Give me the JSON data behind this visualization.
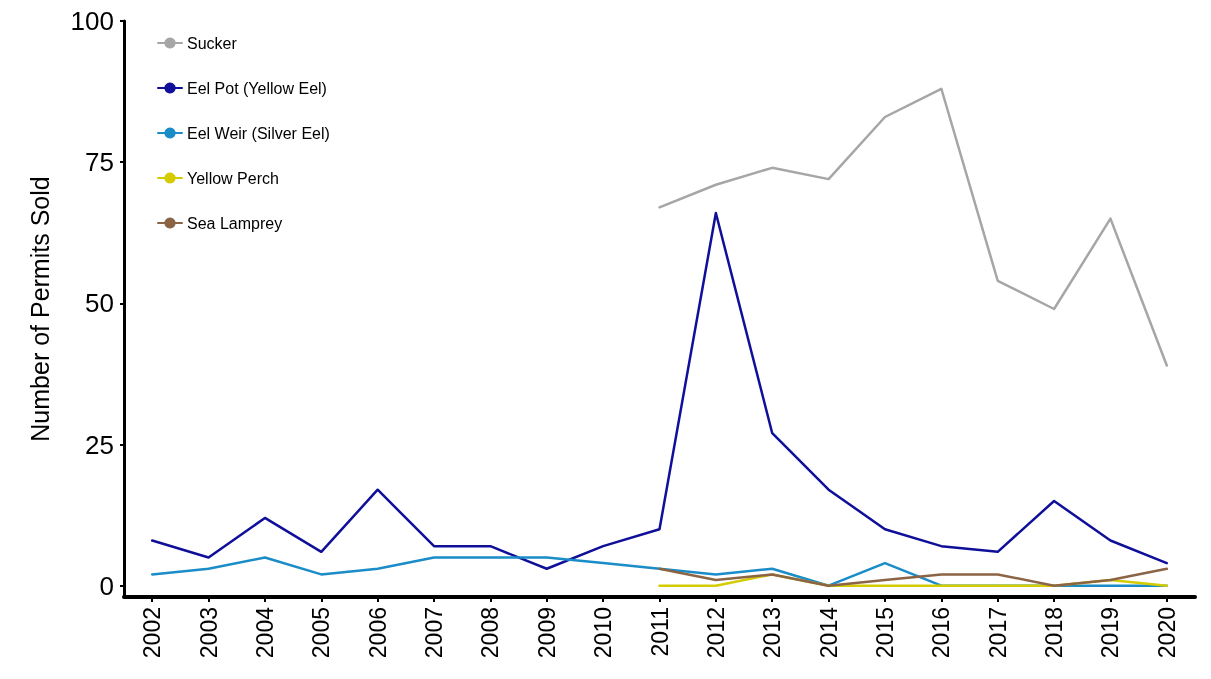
{
  "chart_data": {
    "type": "line",
    "ylabel": "Number of Permits Sold",
    "categories": [
      "2002",
      "2003",
      "2004",
      "2005",
      "2006",
      "2007",
      "2008",
      "2009",
      "2010",
      "2011",
      "2012",
      "2013",
      "2014",
      "2015",
      "2016",
      "2017",
      "2018",
      "2019",
      "2020"
    ],
    "series": [
      {
        "name": "Sucker",
        "color": "#a6a6a6",
        "values": [
          null,
          null,
          null,
          null,
          null,
          null,
          null,
          null,
          null,
          67,
          71,
          74,
          72,
          83,
          88,
          54,
          49,
          65,
          39
        ]
      },
      {
        "name": "Eel Pot (Yellow Eel)",
        "color": "#0f0f9a",
        "values": [
          8,
          5,
          12,
          6,
          17,
          7,
          7,
          3,
          7,
          10,
          66,
          27,
          17,
          10,
          7,
          6,
          15,
          8,
          4
        ]
      },
      {
        "name": "Eel Weir (Silver Eel)",
        "color": "#1a8cc8",
        "values": [
          2,
          3,
          5,
          2,
          3,
          5,
          5,
          5,
          4,
          3,
          2,
          3,
          0,
          4,
          0,
          0,
          0,
          0,
          0
        ]
      },
      {
        "name": "Yellow Perch",
        "color": "#d4cc00",
        "values": [
          null,
          null,
          null,
          null,
          null,
          null,
          null,
          null,
          null,
          0,
          0,
          2,
          0,
          0,
          0,
          0,
          0,
          1,
          0
        ]
      },
      {
        "name": "Sea Lamprey",
        "color": "#8b6446",
        "values": [
          null,
          null,
          null,
          null,
          null,
          null,
          null,
          null,
          null,
          3,
          1,
          2,
          0,
          1,
          2,
          2,
          0,
          1,
          3
        ]
      }
    ],
    "ylim": [
      -2,
      100
    ],
    "yticks": [
      0,
      25,
      50,
      75,
      100
    ],
    "grid": false,
    "legend": "top left",
    "marker": "none",
    "line_style": "solid"
  }
}
